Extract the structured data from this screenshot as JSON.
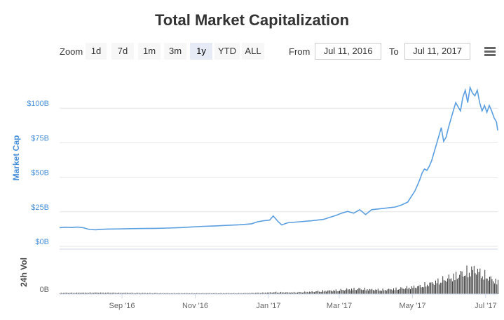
{
  "title": "Total Market Capitalization",
  "toolbar": {
    "zoom_label": "Zoom",
    "zoom_buttons": [
      "1d",
      "7d",
      "1m",
      "3m",
      "1y",
      "YTD",
      "ALL"
    ],
    "active_zoom": "1y",
    "from_label": "From",
    "from_value": "Jul 11, 2016",
    "to_label": "To",
    "to_value": "Jul 11, 2017",
    "menu_icon": "hamburger-menu-icon"
  },
  "colors": {
    "line": "#5b9fe0",
    "axis_text": "#4a90d9",
    "grid": "#e6e6e6",
    "volume": "#333333"
  },
  "chart_data": {
    "type": "line",
    "title": "Total Market Capitalization",
    "ylabel": "Market Cap",
    "ylim": [
      0,
      125
    ],
    "yunit": "B",
    "y_ticks": [
      "$0B",
      "$25B",
      "$50B",
      "$75B",
      "$100B"
    ],
    "y_tick_values": [
      0,
      25,
      50,
      75,
      100
    ],
    "x_ticks": [
      "Sep '16",
      "Nov '16",
      "Jan '17",
      "Mar '17",
      "May '17",
      "Jul '17"
    ],
    "x_tick_days": [
      52,
      113,
      174,
      233,
      294,
      355
    ],
    "x_range_days": [
      0,
      365
    ],
    "grid": true,
    "series": [
      {
        "name": "Market Cap",
        "x": [
          0,
          5,
          10,
          15,
          20,
          25,
          30,
          35,
          40,
          50,
          60,
          70,
          80,
          90,
          100,
          110,
          120,
          130,
          140,
          150,
          160,
          165,
          170,
          175,
          178,
          182,
          185,
          190,
          200,
          210,
          220,
          225,
          230,
          235,
          240,
          245,
          250,
          255,
          260,
          270,
          280,
          285,
          290,
          293,
          296,
          298,
          300,
          302,
          304,
          306,
          308,
          310,
          312,
          314,
          316,
          318,
          320,
          322,
          324,
          326,
          328,
          330,
          332,
          334,
          336,
          338,
          340,
          342,
          344,
          346,
          348,
          350,
          352,
          354,
          356,
          358,
          360,
          362,
          364,
          365
        ],
        "values": [
          13.5,
          13.8,
          13.6,
          13.9,
          13.4,
          12.2,
          12.0,
          12.3,
          12.5,
          12.6,
          12.8,
          12.9,
          13.0,
          13.2,
          13.5,
          14.0,
          14.5,
          14.8,
          15.2,
          15.6,
          16.3,
          17.8,
          18.5,
          19.0,
          22.0,
          18.0,
          15.5,
          17.0,
          17.8,
          18.5,
          19.5,
          21.0,
          22.3,
          24.0,
          25.3,
          24.0,
          26.5,
          23.0,
          26.5,
          27.5,
          28.5,
          30.0,
          32.0,
          36.0,
          40.0,
          44.0,
          48.0,
          53.0,
          56.0,
          55.0,
          58.0,
          62.0,
          68.0,
          74.0,
          80.0,
          86.0,
          76.0,
          79.0,
          86.0,
          92.0,
          98.0,
          104.0,
          101.0,
          98.0,
          108.0,
          113.0,
          104.0,
          115.0,
          111.0,
          109.0,
          113.0,
          104.0,
          98.0,
          102.0,
          97.0,
          102.0,
          98.0,
          93.0,
          90.0,
          84.0
        ]
      },
      {
        "name": "24h Vol",
        "axis_label": "24h Vol",
        "axis_tick": "0B",
        "description": "daily volume bars, relative scale 0-1",
        "x": [
          0,
          30,
          60,
          90,
          120,
          150,
          170,
          180,
          190,
          200,
          210,
          220,
          230,
          240,
          250,
          260,
          270,
          280,
          290,
          300,
          310,
          320,
          325,
          330,
          335,
          340,
          345,
          350,
          355,
          360,
          365
        ],
        "values": [
          0.04,
          0.05,
          0.04,
          0.03,
          0.03,
          0.03,
          0.05,
          0.07,
          0.06,
          0.07,
          0.09,
          0.12,
          0.14,
          0.18,
          0.2,
          0.17,
          0.16,
          0.2,
          0.24,
          0.3,
          0.42,
          0.55,
          0.62,
          0.7,
          0.78,
          0.85,
          0.95,
          0.82,
          0.68,
          0.56,
          0.45
        ]
      }
    ]
  }
}
